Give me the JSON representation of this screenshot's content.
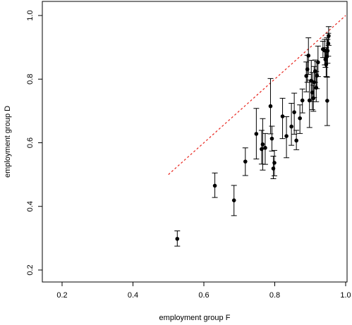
{
  "chart_data": {
    "type": "scatter",
    "title": "",
    "xlabel": "employment group F",
    "ylabel": "employment group D",
    "xlim": [
      0.2,
      1.0
    ],
    "ylim": [
      0.2,
      1.0
    ],
    "xticks": [
      "0.2",
      "0.4",
      "0.6",
      "0.8",
      "1.0"
    ],
    "yticks": [
      "0.2",
      "0.4",
      "0.6",
      "0.8",
      "1.0"
    ],
    "grid": false,
    "legend": "none",
    "reference_line": {
      "from": [
        0.5,
        0.5
      ],
      "to": [
        1.0,
        1.0
      ],
      "color": "#e8231b",
      "style": "dashed"
    },
    "points": [
      {
        "x": 0.525,
        "y": 0.298,
        "lo": 0.275,
        "hi": 0.323
      },
      {
        "x": 0.631,
        "y": 0.465,
        "lo": 0.428,
        "hi": 0.505
      },
      {
        "x": 0.685,
        "y": 0.419,
        "lo": 0.371,
        "hi": 0.466
      },
      {
        "x": 0.717,
        "y": 0.541,
        "lo": 0.497,
        "hi": 0.584
      },
      {
        "x": 0.748,
        "y": 0.628,
        "lo": 0.549,
        "hi": 0.708
      },
      {
        "x": 0.763,
        "y": 0.58,
        "lo": 0.533,
        "hi": 0.639
      },
      {
        "x": 0.766,
        "y": 0.595,
        "lo": 0.514,
        "hi": 0.676
      },
      {
        "x": 0.773,
        "y": 0.584,
        "lo": 0.532,
        "hi": 0.629
      },
      {
        "x": 0.788,
        "y": 0.715,
        "lo": 0.628,
        "hi": 0.802
      },
      {
        "x": 0.792,
        "y": 0.613,
        "lo": 0.574,
        "hi": 0.652
      },
      {
        "x": 0.796,
        "y": 0.519,
        "lo": 0.487,
        "hi": 0.558
      },
      {
        "x": 0.799,
        "y": 0.537,
        "lo": 0.496,
        "hi": 0.576
      },
      {
        "x": 0.822,
        "y": 0.683,
        "lo": 0.613,
        "hi": 0.74
      },
      {
        "x": 0.833,
        "y": 0.621,
        "lo": 0.553,
        "hi": 0.682
      },
      {
        "x": 0.847,
        "y": 0.651,
        "lo": 0.592,
        "hi": 0.724
      },
      {
        "x": 0.855,
        "y": 0.696,
        "lo": 0.627,
        "hi": 0.756
      },
      {
        "x": 0.861,
        "y": 0.607,
        "lo": 0.578,
        "hi": 0.639
      },
      {
        "x": 0.871,
        "y": 0.677,
        "lo": 0.629,
        "hi": 0.719
      },
      {
        "x": 0.878,
        "y": 0.733,
        "lo": 0.694,
        "hi": 0.769
      },
      {
        "x": 0.889,
        "y": 0.81,
        "lo": 0.76,
        "hi": 0.854
      },
      {
        "x": 0.892,
        "y": 0.831,
        "lo": 0.79,
        "hi": 0.875
      },
      {
        "x": 0.895,
        "y": 0.874,
        "lo": 0.815,
        "hi": 0.93
      },
      {
        "x": 0.898,
        "y": 0.733,
        "lo": 0.648,
        "hi": 0.797
      },
      {
        "x": 0.903,
        "y": 0.795,
        "lo": 0.73,
        "hi": 0.859
      },
      {
        "x": 0.906,
        "y": 0.758,
        "lo": 0.704,
        "hi": 0.821
      },
      {
        "x": 0.909,
        "y": 0.74,
        "lo": 0.699,
        "hi": 0.781
      },
      {
        "x": 0.911,
        "y": 0.79,
        "lo": 0.742,
        "hi": 0.84
      },
      {
        "x": 0.914,
        "y": 0.825,
        "lo": 0.79,
        "hi": 0.86
      },
      {
        "x": 0.917,
        "y": 0.773,
        "lo": 0.729,
        "hi": 0.824
      },
      {
        "x": 0.919,
        "y": 0.811,
        "lo": 0.77,
        "hi": 0.855
      },
      {
        "x": 0.922,
        "y": 0.853,
        "lo": 0.808,
        "hi": 0.904
      },
      {
        "x": 0.936,
        "y": 0.894,
        "lo": 0.868,
        "hi": 0.919
      },
      {
        "x": 0.941,
        "y": 0.89,
        "lo": 0.845,
        "hi": 0.925
      },
      {
        "x": 0.943,
        "y": 0.862,
        "lo": 0.837,
        "hi": 0.889
      },
      {
        "x": 0.945,
        "y": 0.846,
        "lo": 0.808,
        "hi": 0.899
      },
      {
        "x": 0.947,
        "y": 0.871,
        "lo": 0.806,
        "hi": 0.93
      },
      {
        "x": 0.948,
        "y": 0.732,
        "lo": 0.654,
        "hi": 0.807
      },
      {
        "x": 0.949,
        "y": 0.889,
        "lo": 0.85,
        "hi": 0.925
      },
      {
        "x": 0.951,
        "y": 0.912,
        "lo": 0.872,
        "hi": 0.944
      },
      {
        "x": 0.952,
        "y": 0.936,
        "lo": 0.906,
        "hi": 0.965
      }
    ]
  }
}
